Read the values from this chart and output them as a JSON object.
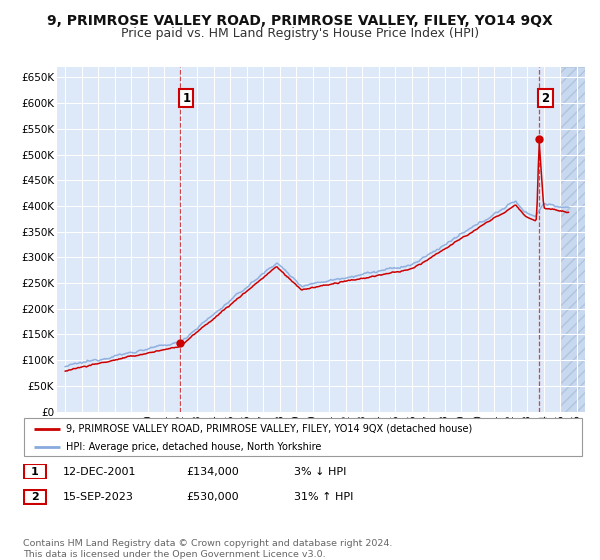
{
  "title": "9, PRIMROSE VALLEY ROAD, PRIMROSE VALLEY, FILEY, YO14 9QX",
  "subtitle": "Price paid vs. HM Land Registry's House Price Index (HPI)",
  "xlim": [
    1994.5,
    2026.5
  ],
  "ylim": [
    0,
    670000
  ],
  "yticks": [
    0,
    50000,
    100000,
    150000,
    200000,
    250000,
    300000,
    350000,
    400000,
    450000,
    500000,
    550000,
    600000,
    650000
  ],
  "ytick_labels": [
    "£0",
    "£50K",
    "£100K",
    "£150K",
    "£200K",
    "£250K",
    "£300K",
    "£350K",
    "£400K",
    "£450K",
    "£500K",
    "£550K",
    "£600K",
    "£650K"
  ],
  "xticks": [
    1995,
    1996,
    1997,
    1998,
    1999,
    2000,
    2001,
    2002,
    2003,
    2004,
    2005,
    2006,
    2007,
    2008,
    2009,
    2010,
    2011,
    2012,
    2013,
    2014,
    2015,
    2016,
    2017,
    2018,
    2019,
    2020,
    2021,
    2022,
    2023,
    2024,
    2025,
    2026
  ],
  "sale1_x": 2001.95,
  "sale1_y": 134000,
  "sale2_x": 2023.71,
  "sale2_y": 530000,
  "hpi_color": "#88aadd",
  "sold_color": "#cc0000",
  "background_color": "#dde8f8",
  "grid_color": "#ffffff",
  "hatch_color": "#c8d8ee",
  "legend_label_sold": "9, PRIMROSE VALLEY ROAD, PRIMROSE VALLEY, FILEY, YO14 9QX (detached house)",
  "legend_label_hpi": "HPI: Average price, detached house, North Yorkshire",
  "table_row1": [
    "1",
    "12-DEC-2001",
    "£134,000",
    "3% ↓ HPI"
  ],
  "table_row2": [
    "2",
    "15-SEP-2023",
    "£530,000",
    "31% ↑ HPI"
  ],
  "footer": "Contains HM Land Registry data © Crown copyright and database right 2024.\nThis data is licensed under the Open Government Licence v3.0.",
  "title_fontsize": 10,
  "subtitle_fontsize": 9,
  "annotation_box_color": "#cc0000"
}
